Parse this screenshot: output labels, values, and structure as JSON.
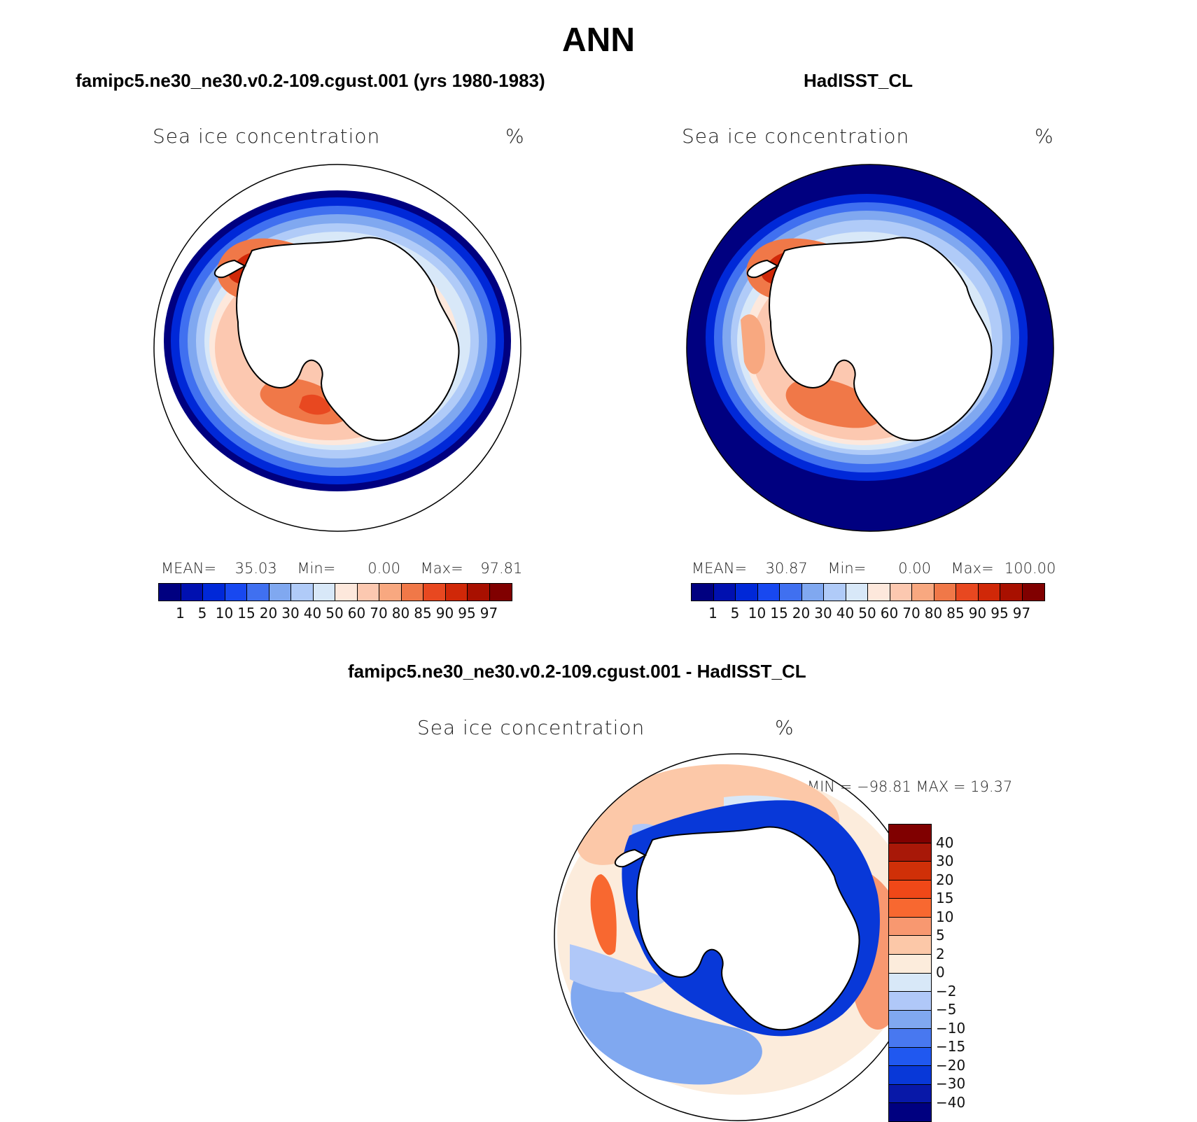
{
  "title": "ANN",
  "colors": {
    "seq_palette": [
      "#000080",
      "#0010b0",
      "#0028d8",
      "#1848f0",
      "#4070f0",
      "#80a8f0",
      "#b0cbf8",
      "#d8e8f8",
      "#fde8dc",
      "#fcc8b0",
      "#f8a880",
      "#f07848",
      "#e84820",
      "#d02808",
      "#a81000",
      "#800000"
    ],
    "div_palette": [
      "#000080",
      "#0818a8",
      "#0838d8",
      "#2058f0",
      "#4878f0",
      "#80a8f0",
      "#b0c8f8",
      "#d8e8f8",
      "#fcecdc",
      "#fcc8a8",
      "#f89870",
      "#f86830",
      "#f04818",
      "#d03008",
      "#a81808",
      "#800000"
    ],
    "land": "#ffffff",
    "coast": "#000000"
  },
  "panels": {
    "left": {
      "header": "famipc5.ne30_ne30.v0.2-109.cgust.001 (yrs 1980-1983)",
      "var_label": "Sea ice concentration",
      "units": "%",
      "stats": {
        "mean_label": "MEAN=",
        "mean": "35.03",
        "min_label": "Min=",
        "min": "0.00",
        "max_label": "Max=",
        "max": "97.81"
      },
      "map_name": "model-sea-ice-map"
    },
    "right": {
      "header": "HadISST_CL",
      "var_label": "Sea ice concentration",
      "units": "%",
      "stats": {
        "mean_label": "MEAN=",
        "mean": "30.87",
        "min_label": "Min=",
        "min": "0.00",
        "max_label": "Max=",
        "max": "100.00"
      },
      "map_name": "obs-sea-ice-map"
    },
    "diff": {
      "header": "famipc5.ne30_ne30.v0.2-109.cgust.001 - HadISST_CL",
      "var_label": "Sea ice concentration",
      "units": "%",
      "minmax": "MIN = −98.81 MAX =   19.37"
    }
  },
  "seq_levels": [
    "1",
    "5",
    "10",
    "15",
    "20",
    "30",
    "40",
    "50",
    "60",
    "70",
    "80",
    "85",
    "90",
    "95",
    "97"
  ],
  "div_levels": [
    "40",
    "30",
    "20",
    "15",
    "10",
    "5",
    "2",
    "0",
    "−2",
    "−5",
    "−10",
    "−15",
    "−20",
    "−30",
    "−40"
  ],
  "chart_data": {
    "type": "polar-contour-map",
    "projection": "south-polar-stereographic",
    "panels": [
      {
        "title": "famipc5.ne30_ne30.v0.2-109.cgust.001 (yrs 1980-1983)",
        "variable": "Sea ice concentration",
        "units": "%",
        "mean": 35.03,
        "min": 0.0,
        "max": 97.81,
        "levels": [
          1,
          5,
          10,
          15,
          20,
          30,
          40,
          50,
          60,
          70,
          80,
          85,
          90,
          95,
          97
        ]
      },
      {
        "title": "HadISST_CL",
        "variable": "Sea ice concentration",
        "units": "%",
        "mean": 30.87,
        "min": 0.0,
        "max": 100.0,
        "levels": [
          1,
          5,
          10,
          15,
          20,
          30,
          40,
          50,
          60,
          70,
          80,
          85,
          90,
          95,
          97
        ]
      },
      {
        "title": "famipc5.ne30_ne30.v0.2-109.cgust.001 - HadISST_CL",
        "variable": "Sea ice concentration",
        "units": "%",
        "min": -98.81,
        "max": 19.37,
        "levels": [
          -40,
          -30,
          -20,
          -15,
          -10,
          -5,
          -2,
          0,
          2,
          5,
          10,
          15,
          20,
          30,
          40
        ]
      }
    ]
  }
}
